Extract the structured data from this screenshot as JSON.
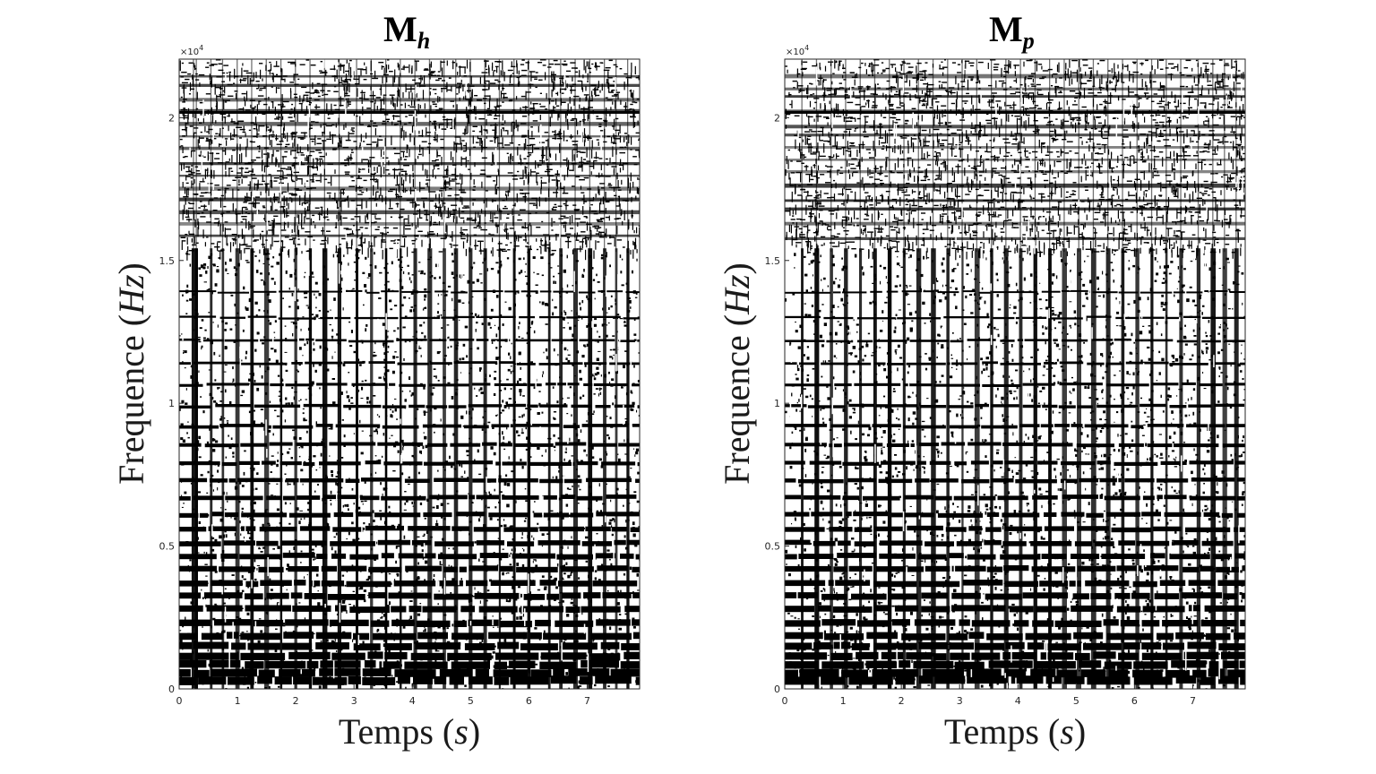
{
  "chart_data": [
    {
      "type": "heatmap",
      "title_main": "M",
      "title_sub": "h",
      "xlabel_text": "Temps",
      "xlabel_unit": "s",
      "ylabel_text": "Frequence",
      "ylabel_unit": "Hz",
      "xlim": [
        0,
        7.9
      ],
      "ylim": [
        0,
        22050
      ],
      "x_ticks": [
        0,
        1,
        2,
        3,
        4,
        5,
        6,
        7
      ],
      "x_tick_labels": [
        "0",
        "1",
        "2",
        "3",
        "4",
        "5",
        "6",
        "7"
      ],
      "y_ticks": [
        0,
        5000,
        10000,
        15000,
        20000
      ],
      "y_tick_labels": [
        "0",
        "0.5",
        "1",
        "1.5",
        "2"
      ],
      "y_exponent_label": "×10",
      "y_exponent_power": "4",
      "colormap": "binary",
      "colors": {
        "ink": "#000000",
        "paper": "#ffffff"
      },
      "onset_times": [
        0.25,
        0.3,
        0.55,
        0.75,
        1.0,
        1.25,
        1.5,
        1.75,
        2.0,
        2.25,
        2.5,
        2.75,
        3.05,
        3.3,
        3.55,
        3.8,
        4.05,
        4.3,
        4.55,
        4.75,
        5.0,
        5.25,
        5.5,
        5.75,
        6.0,
        6.35,
        6.55,
        6.8,
        7.05,
        7.3,
        7.5,
        7.7
      ],
      "harmonic_bands_hz": [
        300,
        550,
        850,
        1150,
        1500,
        1850,
        2300,
        2800,
        3250,
        3700,
        4200,
        4650,
        5100,
        5600,
        6100,
        6700,
        7300,
        7900,
        8550,
        9200,
        9900,
        10650,
        11400,
        12200,
        13000,
        13900
      ],
      "cutoff_hz": 15300,
      "upper_line_hz": 20200
    },
    {
      "type": "heatmap",
      "title_main": "M",
      "title_sub": "p",
      "xlabel_text": "Temps",
      "xlabel_unit": "s",
      "ylabel_text": "Frequence",
      "ylabel_unit": "Hz",
      "xlim": [
        0,
        7.9
      ],
      "ylim": [
        0,
        22050
      ],
      "x_ticks": [
        0,
        1,
        2,
        3,
        4,
        5,
        6,
        7
      ],
      "x_tick_labels": [
        "0",
        "1",
        "2",
        "3",
        "4",
        "5",
        "6",
        "7"
      ],
      "y_ticks": [
        0,
        5000,
        10000,
        15000,
        20000
      ],
      "y_tick_labels": [
        "0",
        "0.5",
        "1",
        "1.5",
        "2"
      ],
      "y_exponent_label": "×10",
      "y_exponent_power": "4",
      "colormap": "binary",
      "colors": {
        "ink": "#000000",
        "paper": "#ffffff"
      },
      "onset_times": [
        0.3,
        0.55,
        0.8,
        1.05,
        1.3,
        1.55,
        1.8,
        2.05,
        2.3,
        2.55,
        2.8,
        3.05,
        3.3,
        3.55,
        3.8,
        4.05,
        4.3,
        4.55,
        4.8,
        5.05,
        5.3,
        5.55,
        5.8,
        6.05,
        6.3,
        6.55,
        6.8,
        7.1,
        7.35,
        7.55,
        7.75
      ],
      "harmonic_bands_hz": [
        300,
        550,
        850,
        1150,
        1500,
        1850,
        2300,
        2800,
        3250,
        3700,
        4200,
        4650,
        5100,
        5600,
        6100,
        6700,
        7300,
        7900,
        8550,
        9200,
        9900,
        10650,
        11400,
        12200,
        13000,
        13900
      ],
      "cutoff_hz": 15300,
      "upper_line_hz": 20200
    }
  ]
}
